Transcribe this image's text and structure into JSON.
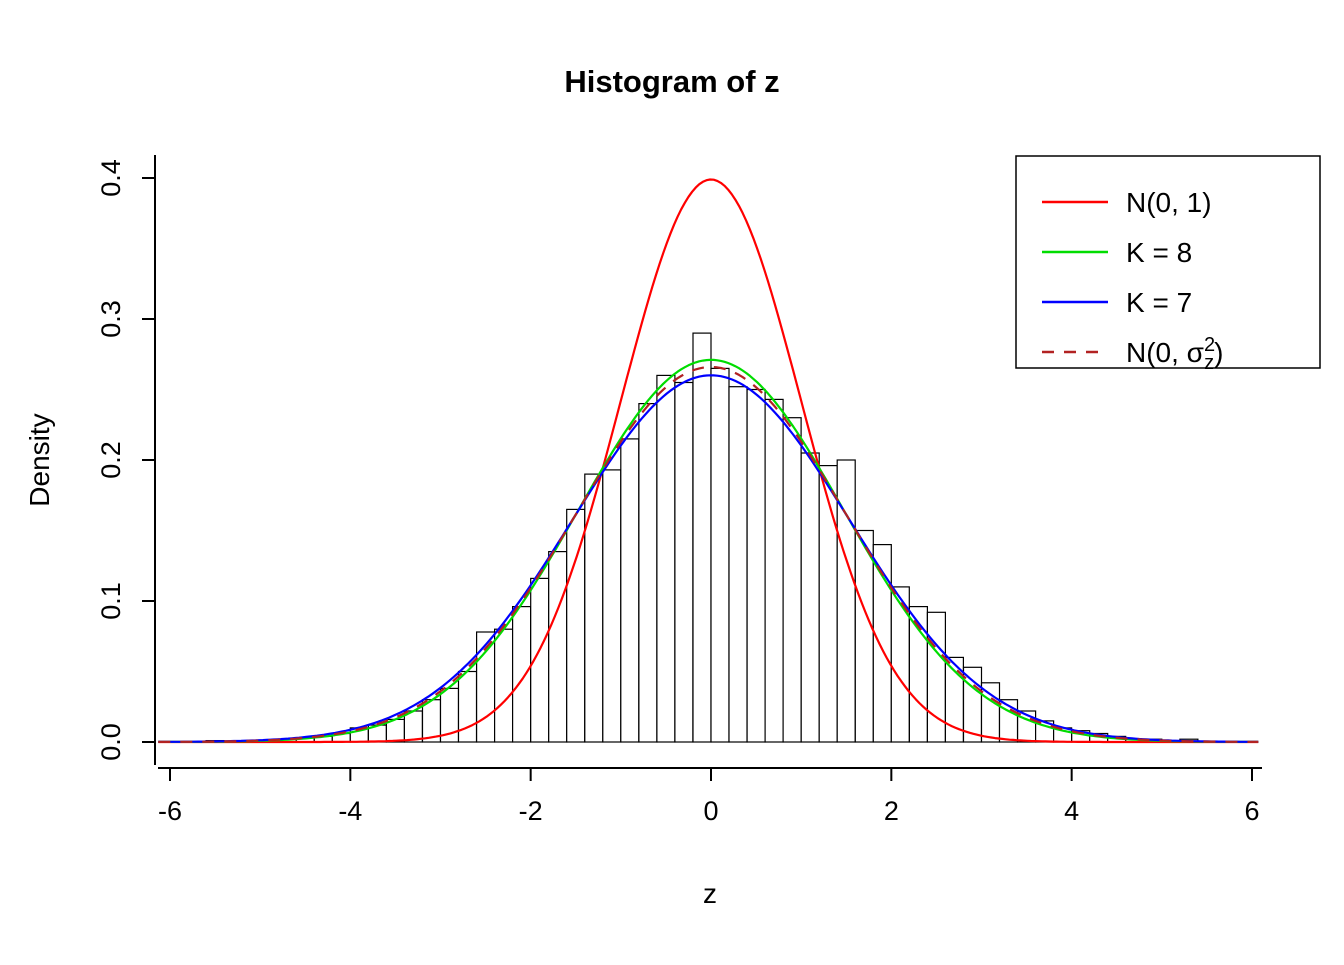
{
  "chart_data": {
    "type": "histogram",
    "title": "Histogram of z",
    "xlabel": "z",
    "ylabel": "Density",
    "xlim": [
      -6,
      6
    ],
    "ylim": [
      0,
      0.4
    ],
    "grid": false,
    "x_tick_values": [
      -6,
      -4,
      -2,
      0,
      2,
      4,
      6
    ],
    "x_tick_labels": [
      "-6",
      "-4",
      "-2",
      "0",
      "2",
      "4",
      "6"
    ],
    "y_tick_values": [
      0,
      0.1,
      0.2,
      0.3,
      0.4
    ],
    "y_tick_labels": [
      "0.0",
      "0.1",
      "0.2",
      "0.3",
      "0.4"
    ],
    "histogram": {
      "bin_width": 0.2,
      "first_bin_center": -5.5,
      "bar_fill": "#FFFFFF",
      "bar_stroke": "#000000",
      "densities": [
        0.001,
        0,
        0.001,
        0.001,
        0,
        0.003,
        0.004,
        0.006,
        0.01,
        0.012,
        0.016,
        0.022,
        0.03,
        0.038,
        0.05,
        0.078,
        0.08,
        0.096,
        0.116,
        0.135,
        0.165,
        0.19,
        0.193,
        0.215,
        0.24,
        0.26,
        0.255,
        0.29,
        0.265,
        0.252,
        0.25,
        0.243,
        0.23,
        0.205,
        0.196,
        0.2,
        0.15,
        0.14,
        0.11,
        0.096,
        0.092,
        0.06,
        0.053,
        0.042,
        0.03,
        0.022,
        0.015,
        0.01,
        0.008,
        0.006,
        0.004,
        0.002,
        0.002,
        0,
        0.002
      ]
    },
    "curves": [
      {
        "name": "N(0, 1)",
        "color": "#FF0000",
        "style": "solid",
        "distribution": "normal",
        "mean": 0,
        "sd": 1.0,
        "peak_density": 0.399
      },
      {
        "name": "K = 8",
        "color": "#00DD00",
        "style": "solid",
        "distribution": "normal-approx",
        "mean": 0,
        "sd": 1.472,
        "peak_density": 0.271
      },
      {
        "name": "K = 7",
        "color": "#0000FF",
        "style": "solid",
        "distribution": "normal-approx",
        "mean": 0,
        "sd": 1.534,
        "peak_density": 0.26
      },
      {
        "name": "N(0, σz²)",
        "color": "#B22222",
        "style": "dashed",
        "distribution": "normal",
        "mean": 0,
        "sd": 1.5,
        "peak_density": 0.266
      }
    ],
    "legend": {
      "position": "top-right",
      "items": [
        {
          "label": "N(0, 1)",
          "color": "#FF0000",
          "dash": false
        },
        {
          "label": "K = 8",
          "color": "#00DD00",
          "dash": false
        },
        {
          "label": "K = 7",
          "color": "#0000FF",
          "dash": false
        },
        {
          "label": "N(0, σz²)",
          "color": "#B22222",
          "dash": true,
          "label_parts": {
            "pre": "N(0, σ",
            "sup": "2",
            "sub": "z",
            "post": ")"
          }
        }
      ]
    }
  }
}
